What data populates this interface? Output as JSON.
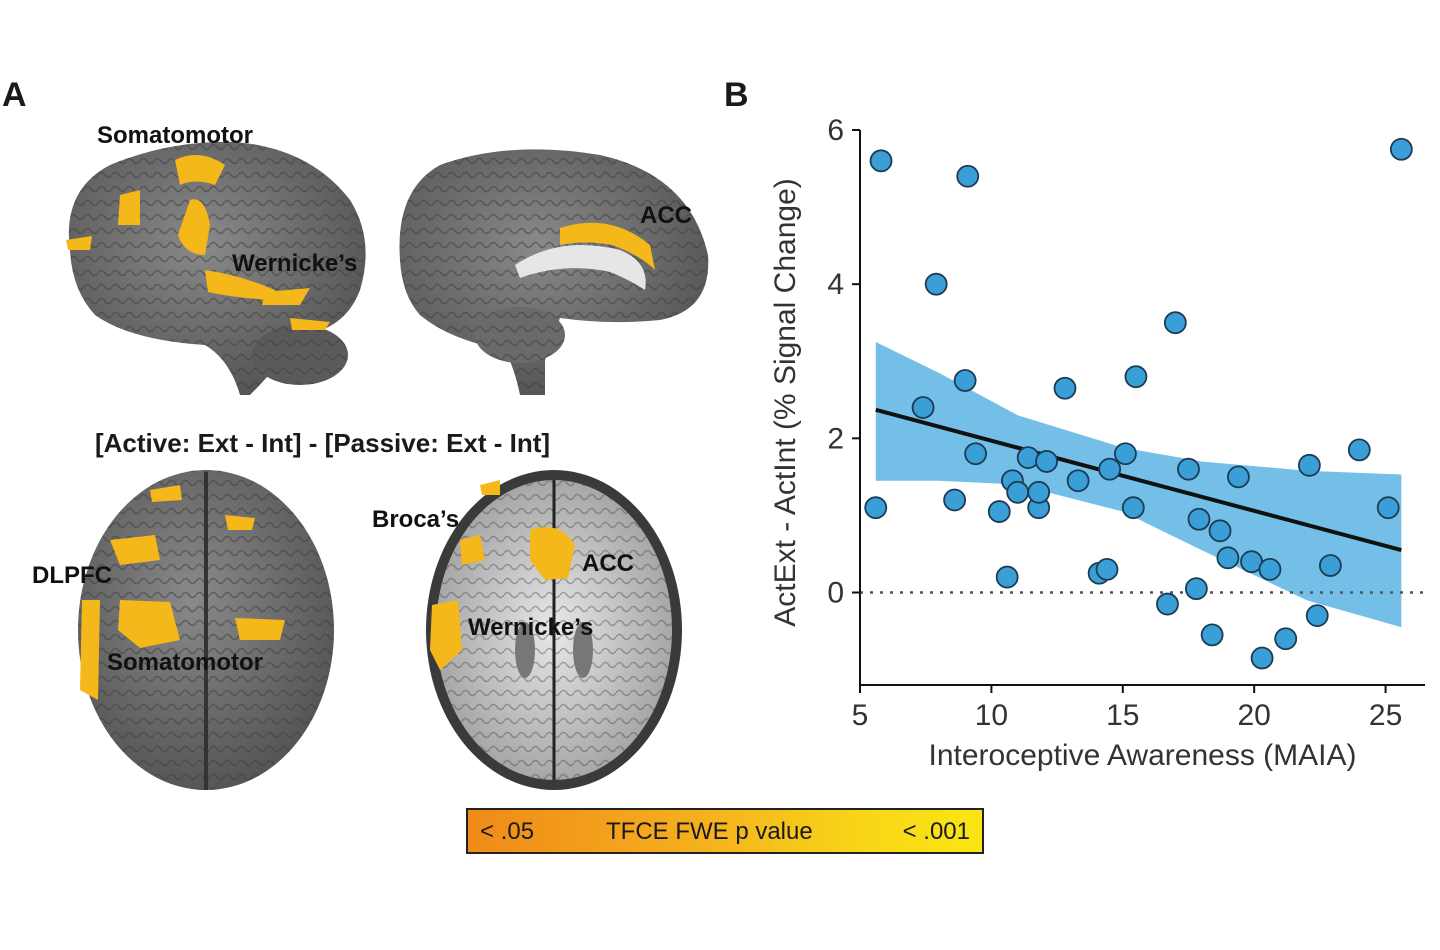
{
  "panel_a": {
    "letter": "A",
    "labels": {
      "somatomotor_top": "Somatomotor",
      "acc_top": "ACC",
      "wernicke_top": "Wernicke’s",
      "dlpfc": "DLPFC",
      "somatomotor_bottom": "Somatomotor",
      "broca": "Broca’s",
      "acc_bottom": "ACC",
      "wernicke_bottom": "Wernicke’s"
    },
    "contrast_title": "[Active: Ext - Int] - [Passive: Ext - Int]",
    "colorbar": {
      "low": "< .05",
      "title": "TFCE FWE p value",
      "high": "< .001",
      "low_color": "#f08a18",
      "high_color": "#fae614"
    }
  },
  "panel_b": {
    "letter": "B"
  },
  "colors": {
    "point": "#3a9fd6",
    "band": "#5ab4e4",
    "activation": "#f5b81a",
    "brain": "#6b6b6b"
  },
  "chart_data": {
    "type": "scatter",
    "xlabel": "Interoceptive Awareness (MAIA)",
    "ylabel": "ActExt - ActInt (% Signal Change)",
    "xlim": [
      5,
      26.5
    ],
    "ylim": [
      -1.2,
      6
    ],
    "xticks": [
      5,
      10,
      15,
      20,
      25
    ],
    "yticks": [
      0,
      2,
      4,
      6
    ],
    "reference_line_y": 0,
    "grid": false,
    "points": [
      [
        5.6,
        1.1
      ],
      [
        5.8,
        5.6
      ],
      [
        7.4,
        2.4
      ],
      [
        7.9,
        4.0
      ],
      [
        8.6,
        1.2
      ],
      [
        9.0,
        2.75
      ],
      [
        9.1,
        5.4
      ],
      [
        9.4,
        1.8
      ],
      [
        10.3,
        1.05
      ],
      [
        10.6,
        0.2
      ],
      [
        10.8,
        1.45
      ],
      [
        11.0,
        1.3
      ],
      [
        11.4,
        1.75
      ],
      [
        11.8,
        1.1
      ],
      [
        11.8,
        1.3
      ],
      [
        12.1,
        1.7
      ],
      [
        12.8,
        2.65
      ],
      [
        13.3,
        1.45
      ],
      [
        14.1,
        0.25
      ],
      [
        14.4,
        0.3
      ],
      [
        14.5,
        1.6
      ],
      [
        15.1,
        1.8
      ],
      [
        15.4,
        1.1
      ],
      [
        15.5,
        2.8
      ],
      [
        16.7,
        -0.15
      ],
      [
        17.0,
        3.5
      ],
      [
        17.5,
        1.6
      ],
      [
        17.8,
        0.05
      ],
      [
        17.9,
        0.95
      ],
      [
        18.4,
        -0.55
      ],
      [
        18.7,
        0.8
      ],
      [
        19.0,
        0.45
      ],
      [
        19.4,
        1.5
      ],
      [
        19.9,
        0.4
      ],
      [
        20.3,
        -0.85
      ],
      [
        20.6,
        0.3
      ],
      [
        21.2,
        -0.6
      ],
      [
        22.1,
        1.65
      ],
      [
        22.4,
        -0.3
      ],
      [
        22.9,
        0.35
      ],
      [
        24.0,
        1.85
      ],
      [
        25.1,
        1.1
      ],
      [
        25.6,
        5.75
      ]
    ],
    "fit": {
      "x": [
        5.6,
        25.6
      ],
      "y": [
        2.37,
        0.55
      ]
    },
    "ci_upper": [
      [
        5.6,
        3.25
      ],
      [
        8,
        2.85
      ],
      [
        11,
        2.3
      ],
      [
        15,
        1.88
      ],
      [
        18,
        1.7
      ],
      [
        22,
        1.58
      ],
      [
        25.6,
        1.53
      ]
    ],
    "ci_lower": [
      [
        5.6,
        1.45
      ],
      [
        8,
        1.45
      ],
      [
        11,
        1.4
      ],
      [
        15,
        1.05
      ],
      [
        18,
        0.55
      ],
      [
        22,
        -0.1
      ],
      [
        25.6,
        -0.45
      ]
    ]
  }
}
